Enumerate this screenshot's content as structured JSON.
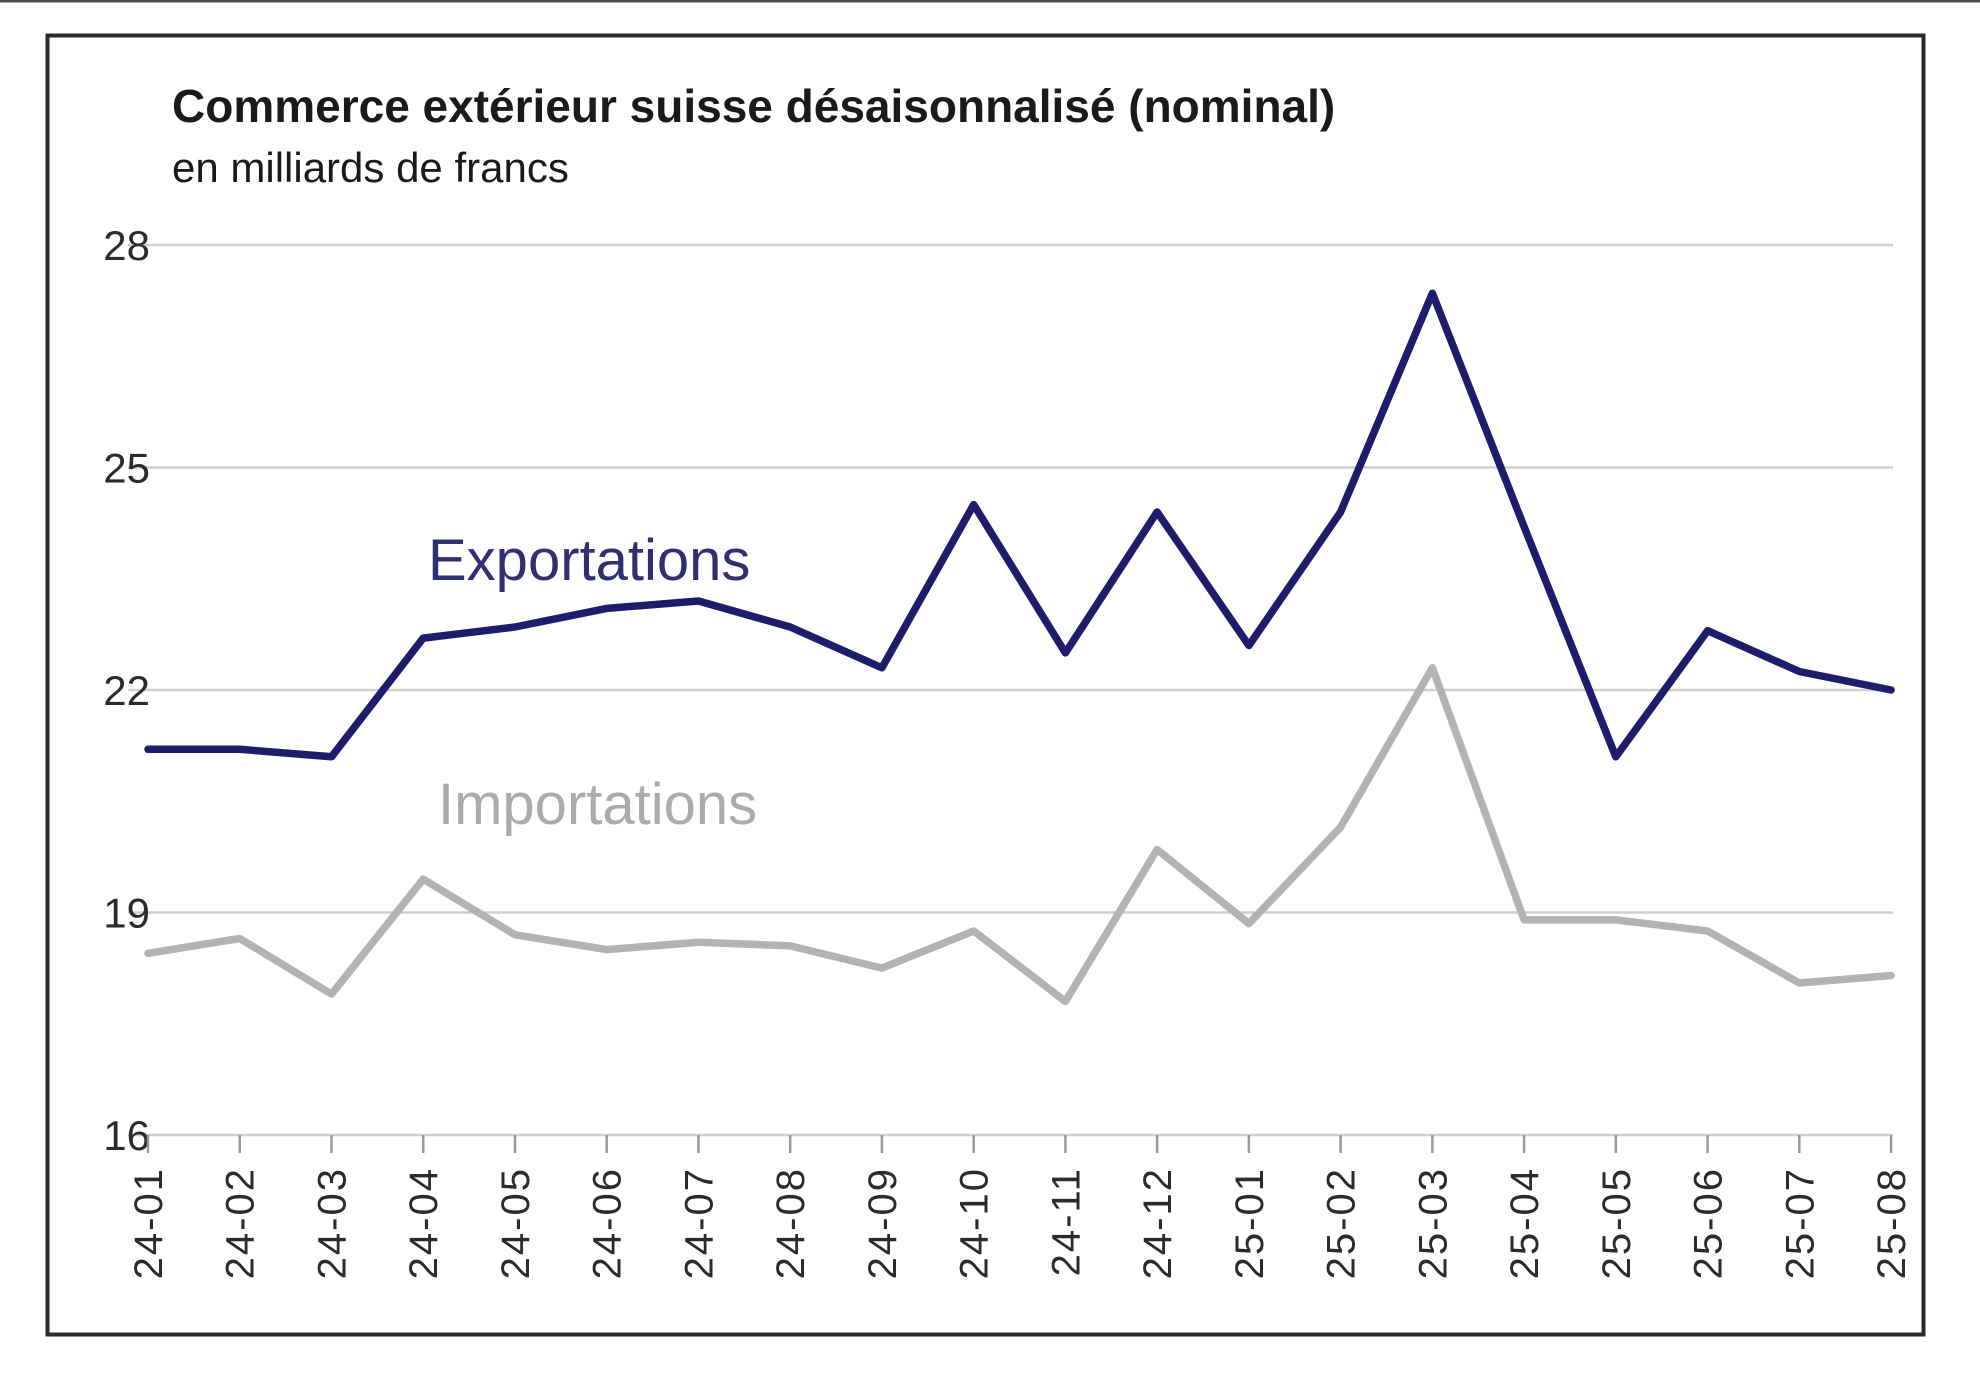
{
  "chart": {
    "title": "Commerce extérieur suisse désaisonnalisé (nominal)",
    "subtitle": "en milliards de francs"
  },
  "chart_data": {
    "type": "line",
    "title": "Commerce extérieur suisse désaisonnalisé (nominal)",
    "subtitle": "en milliards de francs",
    "unit": "milliards de francs",
    "categories": [
      "24-01",
      "24-02",
      "24-03",
      "24-04",
      "24-05",
      "24-06",
      "24-07",
      "24-08",
      "24-09",
      "24-10",
      "24-11",
      "24-12",
      "25-01",
      "25-02",
      "25-03",
      "25-04",
      "25-05",
      "25-06",
      "25-07",
      "25-08"
    ],
    "series": [
      {
        "name": "Exportations",
        "line_color": "#1d1d6b",
        "label_color": "#2f2f72",
        "values": [
          21.2,
          21.2,
          21.1,
          22.7,
          22.85,
          23.1,
          23.2,
          22.85,
          22.3,
          24.5,
          22.5,
          24.4,
          22.6,
          24.4,
          27.35,
          24.2,
          21.1,
          22.8,
          22.25,
          22.0
        ]
      },
      {
        "name": "Importations",
        "line_color": "#b3b3b3",
        "label_color": "#ababab",
        "values": [
          18.45,
          18.65,
          17.9,
          19.45,
          18.7,
          18.5,
          18.6,
          18.55,
          18.25,
          18.75,
          17.8,
          19.85,
          18.85,
          20.15,
          22.3,
          18.9,
          18.9,
          18.75,
          18.05,
          18.15
        ]
      }
    ],
    "ylim": [
      16,
      28
    ],
    "y_ticks": [
      28,
      25,
      22,
      19,
      16
    ],
    "grid": "horizontal gridlines at y ticks",
    "legend": "inline labels next to lines",
    "colors": {
      "grid_line": "#cfcfcf",
      "axis_tick": "#999999",
      "axis_text": "#2b2b2b",
      "title_text": "#1a1a1a",
      "frame_border": "#2a2a2a",
      "top_edge": "#4d4d4d",
      "background": "#ffffff"
    }
  }
}
